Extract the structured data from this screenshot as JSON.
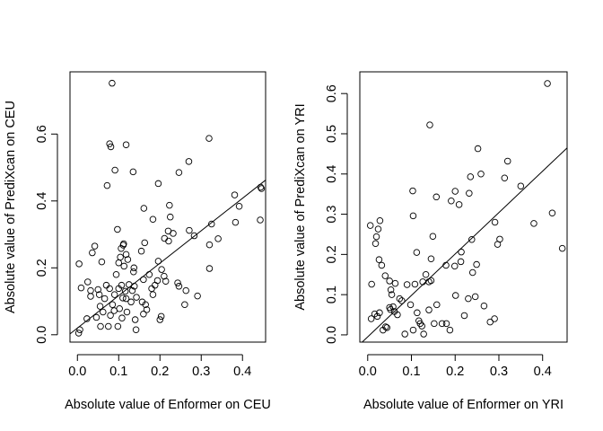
{
  "chart_data": [
    {
      "type": "scatter",
      "title": "",
      "xlabel": "Absolute value of Enformer on CEU",
      "ylabel": "Absolute value of PrediXcan on CEU",
      "xlim": [
        -0.018,
        0.456
      ],
      "ylim": [
        -0.022,
        0.786
      ],
      "xticks": [
        0.0,
        0.1,
        0.2,
        0.3,
        0.4
      ],
      "xtick_labels": [
        "0.0",
        "0.1",
        "0.2",
        "0.3",
        "0.4"
      ],
      "yticks": [
        0.0,
        0.2,
        0.4,
        0.6
      ],
      "ytick_labels": [
        "0.0",
        "0.2",
        "0.4",
        "0.6"
      ],
      "box": true,
      "grid": false,
      "regression_line": {
        "intercept": 0.02,
        "slope": 0.97
      },
      "series": [
        {
          "marker": "open-circle",
          "points": [
            [
              0.084,
              0.752
            ],
            [
              0.319,
              0.587
            ],
            [
              0.078,
              0.571
            ],
            [
              0.081,
              0.562
            ],
            [
              0.118,
              0.568
            ],
            [
              0.072,
              0.446
            ],
            [
              0.091,
              0.492
            ],
            [
              0.135,
              0.487
            ],
            [
              0.27,
              0.518
            ],
            [
              0.246,
              0.485
            ],
            [
              0.196,
              0.452
            ],
            [
              0.381,
              0.418
            ],
            [
              0.444,
              0.441
            ],
            [
              0.446,
              0.437
            ],
            [
              0.392,
              0.384
            ],
            [
              0.223,
              0.387
            ],
            [
              0.225,
              0.352
            ],
            [
              0.183,
              0.345
            ],
            [
              0.161,
              0.378
            ],
            [
              0.383,
              0.336
            ],
            [
              0.443,
              0.343
            ],
            [
              0.325,
              0.331
            ],
            [
              0.341,
              0.287
            ],
            [
              0.271,
              0.312
            ],
            [
              0.283,
              0.296
            ],
            [
              0.291,
              0.116
            ],
            [
              0.32,
              0.269
            ],
            [
              0.32,
              0.198
            ],
            [
              0.232,
              0.303
            ],
            [
              0.211,
              0.288
            ],
            [
              0.243,
              0.155
            ],
            [
              0.003,
              0.005
            ],
            [
              0.006,
              0.015
            ],
            [
              0.004,
              0.212
            ],
            [
              0.009,
              0.14
            ],
            [
              0.023,
              0.048
            ],
            [
              0.025,
              0.158
            ],
            [
              0.032,
              0.132
            ],
            [
              0.032,
              0.115
            ],
            [
              0.036,
              0.245
            ],
            [
              0.042,
              0.265
            ],
            [
              0.046,
              0.052
            ],
            [
              0.05,
              0.135
            ],
            [
              0.053,
              0.12
            ],
            [
              0.055,
              0.085
            ],
            [
              0.056,
              0.025
            ],
            [
              0.059,
              0.218
            ],
            [
              0.062,
              0.068
            ],
            [
              0.066,
              0.108
            ],
            [
              0.07,
              0.148
            ],
            [
              0.075,
              0.025
            ],
            [
              0.078,
              0.138
            ],
            [
              0.08,
              0.058
            ],
            [
              0.085,
              0.09
            ],
            [
              0.089,
              0.072
            ],
            [
              0.09,
              0.12
            ],
            [
              0.094,
              0.18
            ],
            [
              0.097,
              0.315
            ],
            [
              0.098,
              0.025
            ],
            [
              0.1,
              0.215
            ],
            [
              0.1,
              0.138
            ],
            [
              0.102,
              0.078
            ],
            [
              0.104,
              0.232
            ],
            [
              0.106,
              0.258
            ],
            [
              0.107,
              0.148
            ],
            [
              0.108,
              0.05
            ],
            [
              0.11,
              0.11
            ],
            [
              0.111,
              0.268
            ],
            [
              0.112,
              0.272
            ],
            [
              0.113,
              0.205
            ],
            [
              0.116,
              0.13
            ],
            [
              0.118,
              0.24
            ],
            [
              0.118,
              0.108
            ],
            [
              0.12,
              0.068
            ],
            [
              0.122,
              0.225
            ],
            [
              0.125,
              0.15
            ],
            [
              0.13,
              0.098
            ],
            [
              0.133,
              0.132
            ],
            [
              0.136,
              0.188
            ],
            [
              0.137,
              0.2
            ],
            [
              0.138,
              0.145
            ],
            [
              0.14,
              0.045
            ],
            [
              0.142,
              0.015
            ],
            [
              0.143,
              0.112
            ],
            [
              0.155,
              0.25
            ],
            [
              0.157,
              0.098
            ],
            [
              0.16,
              0.165
            ],
            [
              0.16,
              0.062
            ],
            [
              0.163,
              0.275
            ],
            [
              0.165,
              0.09
            ],
            [
              0.168,
              0.075
            ],
            [
              0.174,
              0.18
            ],
            [
              0.18,
              0.138
            ],
            [
              0.183,
              0.12
            ],
            [
              0.188,
              0.148
            ],
            [
              0.194,
              0.162
            ],
            [
              0.196,
              0.22
            ],
            [
              0.2,
              0.045
            ],
            [
              0.203,
              0.055
            ],
            [
              0.204,
              0.195
            ],
            [
              0.21,
              0.175
            ],
            [
              0.214,
              0.16
            ],
            [
              0.22,
              0.31
            ],
            [
              0.221,
              0.28
            ],
            [
              0.246,
              0.145
            ],
            [
              0.26,
              0.09
            ],
            [
              0.263,
              0.132
            ]
          ]
        }
      ]
    },
    {
      "type": "scatter",
      "title": "",
      "xlabel": "Absolute value of Enformer on YRI",
      "ylabel": "Absolute value of PrediXcan on YRI",
      "xlim": [
        -0.018,
        0.456
      ],
      "ylim": [
        -0.018,
        0.654
      ],
      "xticks": [
        0.0,
        0.1,
        0.2,
        0.3,
        0.4
      ],
      "xtick_labels": [
        "0.0",
        "0.1",
        "0.2",
        "0.3",
        "0.4"
      ],
      "yticks": [
        0.0,
        0.1,
        0.2,
        0.3,
        0.4,
        0.5,
        0.6
      ],
      "ytick_labels": [
        "0.0",
        "0.1",
        "0.2",
        "0.3",
        "0.4",
        "0.5",
        "0.6"
      ],
      "box": true,
      "grid": false,
      "regression_line": {
        "intercept": -0.005,
        "slope": 1.03
      },
      "series": [
        {
          "marker": "open-circle",
          "points": [
            [
              0.411,
              0.625
            ],
            [
              0.142,
              0.522
            ],
            [
              0.252,
              0.463
            ],
            [
              0.32,
              0.432
            ],
            [
              0.259,
              0.4
            ],
            [
              0.235,
              0.393
            ],
            [
              0.313,
              0.39
            ],
            [
              0.35,
              0.37
            ],
            [
              0.2,
              0.357
            ],
            [
              0.232,
              0.352
            ],
            [
              0.103,
              0.358
            ],
            [
              0.157,
              0.343
            ],
            [
              0.191,
              0.333
            ],
            [
              0.209,
              0.324
            ],
            [
              0.422,
              0.303
            ],
            [
              0.38,
              0.277
            ],
            [
              0.104,
              0.296
            ],
            [
              0.291,
              0.28
            ],
            [
              0.006,
              0.272
            ],
            [
              0.024,
              0.263
            ],
            [
              0.028,
              0.284
            ],
            [
              0.02,
              0.244
            ],
            [
              0.018,
              0.227
            ],
            [
              0.149,
              0.245
            ],
            [
              0.238,
              0.237
            ],
            [
              0.302,
              0.238
            ],
            [
              0.297,
              0.225
            ],
            [
              0.445,
              0.215
            ],
            [
              0.112,
              0.205
            ],
            [
              0.214,
              0.206
            ],
            [
              0.026,
              0.187
            ],
            [
              0.032,
              0.173
            ],
            [
              0.145,
              0.189
            ],
            [
              0.179,
              0.173
            ],
            [
              0.199,
              0.171
            ],
            [
              0.009,
              0.126
            ],
            [
              0.05,
              0.134
            ],
            [
              0.063,
              0.128
            ],
            [
              0.053,
              0.112
            ],
            [
              0.04,
              0.147
            ],
            [
              0.055,
              0.1
            ],
            [
              0.073,
              0.09
            ],
            [
              0.078,
              0.085
            ],
            [
              0.09,
              0.125
            ],
            [
              0.108,
              0.126
            ],
            [
              0.126,
              0.132
            ],
            [
              0.133,
              0.15
            ],
            [
              0.14,
              0.132
            ],
            [
              0.145,
              0.135
            ],
            [
              0.05,
              0.068
            ],
            [
              0.052,
              0.063
            ],
            [
              0.058,
              0.07
            ],
            [
              0.061,
              0.058
            ],
            [
              0.068,
              0.05
            ],
            [
              0.008,
              0.04
            ],
            [
              0.016,
              0.052
            ],
            [
              0.022,
              0.046
            ],
            [
              0.027,
              0.055
            ],
            [
              0.035,
              0.012
            ],
            [
              0.041,
              0.02
            ],
            [
              0.044,
              0.018
            ],
            [
              0.085,
              0.002
            ],
            [
              0.104,
              0.012
            ],
            [
              0.113,
              0.055
            ],
            [
              0.117,
              0.035
            ],
            [
              0.12,
              0.028
            ],
            [
              0.124,
              0.022
            ],
            [
              0.128,
              0.002
            ],
            [
              0.158,
              0.075
            ],
            [
              0.17,
              0.028
            ],
            [
              0.18,
              0.028
            ],
            [
              0.188,
              0.012
            ],
            [
              0.201,
              0.098
            ],
            [
              0.213,
              0.182
            ],
            [
              0.221,
              0.048
            ],
            [
              0.23,
              0.09
            ],
            [
              0.246,
              0.095
            ],
            [
              0.266,
              0.072
            ],
            [
              0.28,
              0.032
            ],
            [
              0.29,
              0.04
            ],
            [
              0.098,
              0.075
            ],
            [
              0.14,
              0.062
            ],
            [
              0.152,
              0.028
            ],
            [
              0.24,
              0.155
            ],
            [
              0.249,
              0.175
            ]
          ]
        }
      ]
    }
  ]
}
